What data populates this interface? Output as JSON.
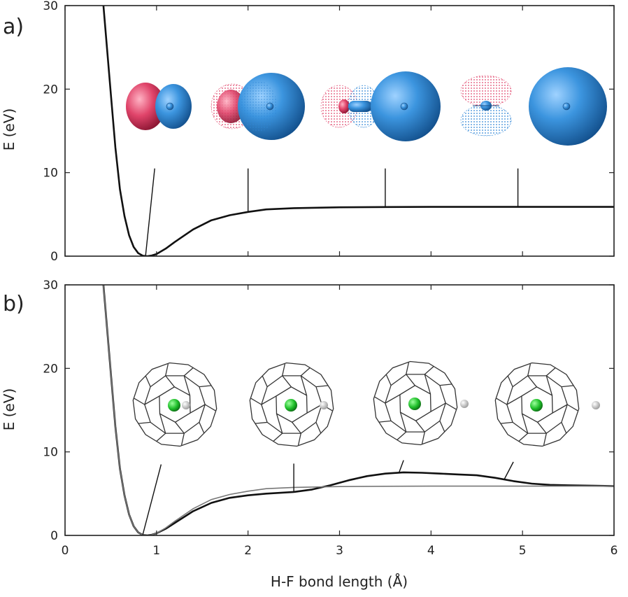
{
  "chart_data": [
    {
      "type": "line",
      "panel_label": "a)",
      "xlabel": "",
      "ylabel": "E (eV)",
      "xlim": [
        0,
        6
      ],
      "ylim": [
        0,
        30
      ],
      "x_ticks": [
        0,
        1,
        2,
        3,
        4,
        5,
        6
      ],
      "y_ticks": [
        0,
        10,
        20,
        30
      ],
      "show_x_tick_labels": false,
      "series": [
        {
          "x": [
            0.42,
            0.5,
            0.55,
            0.6,
            0.65,
            0.7,
            0.75,
            0.8,
            0.85,
            0.9,
            0.95,
            1.0,
            1.1,
            1.2,
            1.4,
            1.6,
            1.8,
            2.0,
            2.2,
            2.5,
            3.0,
            3.5,
            4.0,
            5.0,
            6.0
          ],
          "y": [
            30,
            19.5,
            13,
            8,
            4.8,
            2.5,
            1.1,
            0.35,
            0.05,
            0.0,
            0.08,
            0.25,
            0.9,
            1.7,
            3.2,
            4.3,
            4.9,
            5.3,
            5.6,
            5.75,
            5.85,
            5.88,
            5.9,
            5.9,
            5.9
          ]
        }
      ],
      "annotation_points": [
        {
          "x": 0.88,
          "y": 0.0,
          "label_x": 0.98,
          "label_y": 10.5
        },
        {
          "x": 2.0,
          "y": 5.3,
          "label_x": 2.0,
          "label_y": 10.5
        },
        {
          "x": 3.5,
          "y": 5.88,
          "label_x": 3.5,
          "label_y": 10.5
        },
        {
          "x": 4.95,
          "y": 5.9,
          "label_x": 4.95,
          "label_y": 10.5
        }
      ]
    },
    {
      "type": "line",
      "panel_label": "b)",
      "xlabel": "H-F bond length (Å)",
      "ylabel": "E (eV)",
      "xlim": [
        0,
        6
      ],
      "ylim": [
        0,
        30
      ],
      "x_ticks": [
        0,
        1,
        2,
        3,
        4,
        5,
        6
      ],
      "x_tick_labels": [
        "0",
        "1",
        "2",
        "3",
        "4",
        "5",
        "6"
      ],
      "y_ticks": [
        0,
        10,
        20,
        30
      ],
      "series": [
        {
          "x": [
            0.42,
            0.5,
            0.55,
            0.6,
            0.65,
            0.7,
            0.75,
            0.8,
            0.85,
            0.9,
            0.95,
            1.0,
            1.1,
            1.2,
            1.4,
            1.6,
            1.8,
            2.0,
            2.2,
            2.5,
            2.7,
            2.9,
            3.1,
            3.3,
            3.5,
            3.7,
            3.9,
            4.1,
            4.3,
            4.5,
            4.7,
            4.9,
            5.1,
            5.3,
            5.5,
            5.8,
            6.0
          ],
          "y": [
            30,
            19.5,
            13,
            8,
            4.8,
            2.5,
            1.1,
            0.35,
            0.05,
            0.0,
            0.08,
            0.25,
            0.8,
            1.5,
            2.9,
            3.9,
            4.5,
            4.8,
            5.0,
            5.2,
            5.5,
            6.0,
            6.6,
            7.1,
            7.4,
            7.55,
            7.5,
            7.4,
            7.3,
            7.2,
            6.9,
            6.5,
            6.2,
            6.05,
            6.0,
            5.95,
            5.9
          ]
        },
        {
          "x": [
            0.42,
            0.5,
            0.55,
            0.6,
            0.65,
            0.7,
            0.75,
            0.8,
            0.85,
            0.9,
            0.95,
            1.0,
            1.1,
            1.2,
            1.4,
            1.6,
            1.8,
            2.0,
            2.2,
            2.5,
            3.0,
            3.5,
            4.0,
            5.0,
            6.0
          ],
          "y": [
            30,
            19.5,
            13,
            8,
            4.8,
            2.5,
            1.1,
            0.35,
            0.05,
            0.0,
            0.08,
            0.25,
            0.9,
            1.7,
            3.2,
            4.3,
            4.9,
            5.3,
            5.6,
            5.75,
            5.85,
            5.88,
            5.9,
            5.9,
            5.9
          ]
        }
      ],
      "annotation_points": [
        {
          "x": 0.85,
          "y": 0.1,
          "label_x": 1.05,
          "label_y": 8.5
        },
        {
          "x": 2.5,
          "y": 5.2,
          "label_x": 2.5,
          "label_y": 8.6
        },
        {
          "x": 3.65,
          "y": 7.5,
          "label_x": 3.7,
          "label_y": 9.0
        },
        {
          "x": 4.8,
          "y": 6.7,
          "label_x": 4.9,
          "label_y": 8.8
        }
      ]
    }
  ],
  "colors": {
    "orbital_positive": "#e0446a",
    "orbital_negative": "#2f86d6",
    "fluorine_atom": "#1fbf2a",
    "hydrogen_atom": "#d6d6d6",
    "main_curve": "#111111",
    "reference_curve": "#777777"
  },
  "insets": {
    "panel_a": [
      "orbital-isosurface",
      "orbital-isosurface",
      "orbital-isosurface",
      "orbital-isosurface",
      "orbital-isosurface"
    ],
    "panel_b": [
      "fullerene-cage-hf",
      "fullerene-cage-hf",
      "fullerene-cage-hf",
      "fullerene-cage-hf"
    ]
  }
}
